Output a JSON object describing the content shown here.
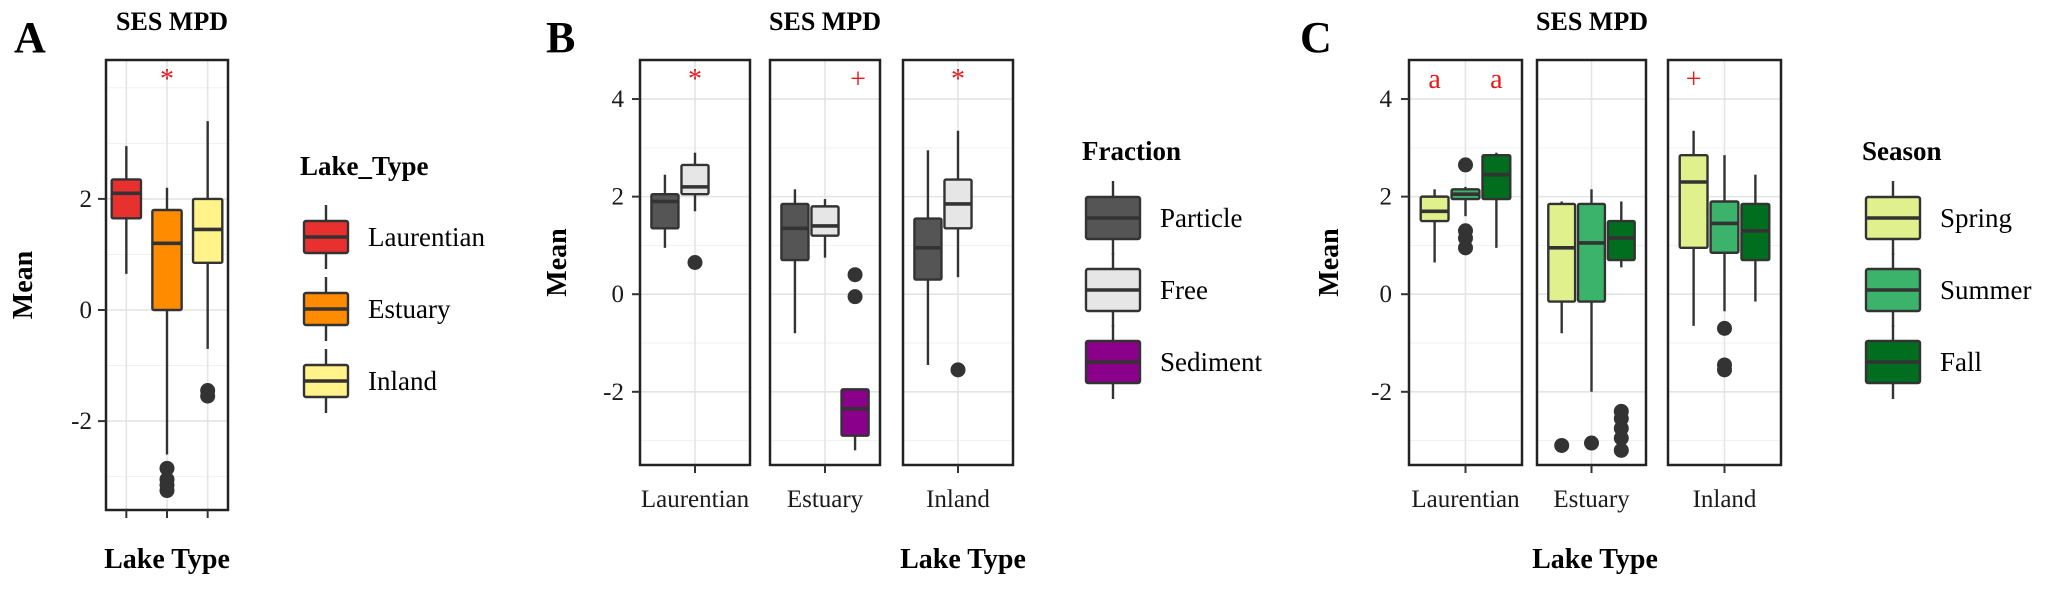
{
  "colors": {
    "Laurentian": "#e8312f",
    "Estuary": "#ff8c00",
    "Inland": "#fff38a",
    "Particle": "#555555",
    "Free": "#e6e6e6",
    "Sediment": "#8b008b",
    "Spring": "#e0f08c",
    "Summer": "#3cb36b",
    "Fall": "#006e1e",
    "annotation": "#e31a1c"
  },
  "chart_data": [
    {
      "panel": "A",
      "type": "boxplot",
      "title": "SES MPD",
      "xlabel": "Lake Type",
      "ylabel": "Mean",
      "ylim": [
        -3.6,
        4.5
      ],
      "yticks": [
        -2,
        0,
        2
      ],
      "groups": [
        "Laurentian",
        "Estuary",
        "Inland"
      ],
      "legend": {
        "title": "Lake_Type",
        "entries": [
          "Laurentian",
          "Estuary",
          "Inland"
        ],
        "position": "right"
      },
      "annotations": [
        {
          "text": "*",
          "group": "Estuary"
        }
      ],
      "boxes": [
        {
          "group": "Laurentian",
          "fill": "Laurentian",
          "min": 0.65,
          "q1": 1.65,
          "median": 2.1,
          "q3": 2.35,
          "max": 2.95,
          "outliers": []
        },
        {
          "group": "Estuary",
          "fill": "Estuary",
          "min": -2.6,
          "q1": 0.0,
          "median": 1.2,
          "q3": 1.8,
          "max": 2.2,
          "outliers": [
            -2.85,
            -3.05,
            -3.15,
            -3.25
          ]
        },
        {
          "group": "Inland",
          "fill": "Inland",
          "min": -0.7,
          "q1": 0.85,
          "median": 1.45,
          "q3": 2.0,
          "max": 3.4,
          "outliers": [
            -1.45,
            -1.55
          ]
        }
      ]
    },
    {
      "panel": "B",
      "type": "boxplot",
      "title": "SES MPD",
      "xlabel": "Lake Type",
      "ylabel": "Mean",
      "ylim": [
        -3.5,
        4.8
      ],
      "yticks": [
        -2,
        0,
        2,
        4
      ],
      "facets": [
        "Laurentian",
        "Estuary",
        "Inland"
      ],
      "legend": {
        "title": "Fraction",
        "entries": [
          "Particle",
          "Free",
          "Sediment"
        ],
        "position": "right"
      },
      "annotations": [
        {
          "text": "*",
          "facet": "Laurentian"
        },
        {
          "text": "+",
          "facet": "Estuary"
        },
        {
          "text": "*",
          "facet": "Inland"
        }
      ],
      "boxes": [
        {
          "facet": "Laurentian",
          "slot": 0,
          "fill": "Particle",
          "min": 0.95,
          "q1": 1.35,
          "median": 1.9,
          "q3": 2.05,
          "max": 2.45,
          "outliers": []
        },
        {
          "facet": "Laurentian",
          "slot": 1,
          "fill": "Free",
          "min": 1.7,
          "q1": 2.05,
          "median": 2.2,
          "q3": 2.65,
          "max": 2.9,
          "outliers": [
            0.65
          ]
        },
        {
          "facet": "Estuary",
          "slot": 0,
          "fill": "Particle",
          "min": -0.8,
          "q1": 0.7,
          "median": 1.35,
          "q3": 1.85,
          "max": 2.15,
          "outliers": []
        },
        {
          "facet": "Estuary",
          "slot": 1,
          "fill": "Free",
          "min": 0.75,
          "q1": 1.2,
          "median": 1.4,
          "q3": 1.8,
          "max": 1.95,
          "outliers": []
        },
        {
          "facet": "Estuary",
          "slot": 2,
          "fill": "Sediment",
          "min": -3.2,
          "q1": -2.9,
          "median": -2.35,
          "q3": -1.95,
          "max": -1.95,
          "outliers": [
            0.4,
            -0.05
          ]
        },
        {
          "facet": "Inland",
          "slot": 0,
          "fill": "Particle",
          "min": -1.45,
          "q1": 0.3,
          "median": 0.95,
          "q3": 1.55,
          "max": 2.95,
          "outliers": []
        },
        {
          "facet": "Inland",
          "slot": 1,
          "fill": "Free",
          "min": 0.35,
          "q1": 1.35,
          "median": 1.85,
          "q3": 2.35,
          "max": 3.35,
          "outliers": [
            -1.55
          ]
        }
      ]
    },
    {
      "panel": "C",
      "type": "boxplot",
      "title": "SES MPD",
      "xlabel": "Lake Type",
      "ylabel": "Mean",
      "ylim": [
        -3.5,
        4.8
      ],
      "yticks": [
        -2,
        0,
        2,
        4
      ],
      "facets": [
        "Laurentian",
        "Estuary",
        "Inland"
      ],
      "legend": {
        "title": "Season",
        "entries": [
          "Spring",
          "Summer",
          "Fall"
        ],
        "position": "right"
      },
      "annotations": [
        {
          "text": "a",
          "facet": "Laurentian",
          "slot": 0
        },
        {
          "text": "a",
          "facet": "Laurentian",
          "slot": 2
        },
        {
          "text": "+",
          "facet": "Inland",
          "slot": 0
        }
      ],
      "boxes": [
        {
          "facet": "Laurentian",
          "slot": 0,
          "fill": "Spring",
          "min": 0.65,
          "q1": 1.5,
          "median": 1.7,
          "q3": 2.0,
          "max": 2.15,
          "outliers": []
        },
        {
          "facet": "Laurentian",
          "slot": 1,
          "fill": "Summer",
          "min": 1.6,
          "q1": 1.95,
          "median": 2.05,
          "q3": 2.15,
          "max": 2.2,
          "outliers": [
            2.65,
            1.3,
            1.15,
            0.95
          ]
        },
        {
          "facet": "Laurentian",
          "slot": 2,
          "fill": "Fall",
          "min": 0.95,
          "q1": 1.95,
          "median": 2.45,
          "q3": 2.85,
          "max": 2.9,
          "outliers": []
        },
        {
          "facet": "Estuary",
          "slot": 0,
          "fill": "Spring",
          "min": -0.8,
          "q1": -0.15,
          "median": 0.95,
          "q3": 1.85,
          "max": 1.9,
          "outliers": [
            -3.1
          ]
        },
        {
          "facet": "Estuary",
          "slot": 1,
          "fill": "Summer",
          "min": -2.0,
          "q1": -0.15,
          "median": 1.05,
          "q3": 1.85,
          "max": 2.15,
          "outliers": [
            -3.05
          ]
        },
        {
          "facet": "Estuary",
          "slot": 2,
          "fill": "Fall",
          "min": 0.55,
          "q1": 0.7,
          "median": 1.15,
          "q3": 1.5,
          "max": 1.9,
          "outliers": [
            -2.4,
            -2.55,
            -2.75,
            -2.95,
            -3.2
          ]
        },
        {
          "facet": "Inland",
          "slot": 0,
          "fill": "Spring",
          "min": -0.65,
          "q1": 0.95,
          "median": 2.3,
          "q3": 2.85,
          "max": 3.35,
          "outliers": []
        },
        {
          "facet": "Inland",
          "slot": 1,
          "fill": "Summer",
          "min": -0.35,
          "q1": 0.85,
          "median": 1.45,
          "q3": 1.9,
          "max": 2.85,
          "outliers": [
            -0.7,
            -1.45,
            -1.55
          ]
        },
        {
          "facet": "Inland",
          "slot": 2,
          "fill": "Fall",
          "min": -0.15,
          "q1": 0.7,
          "median": 1.3,
          "q3": 1.85,
          "max": 2.45,
          "outliers": []
        }
      ]
    }
  ]
}
